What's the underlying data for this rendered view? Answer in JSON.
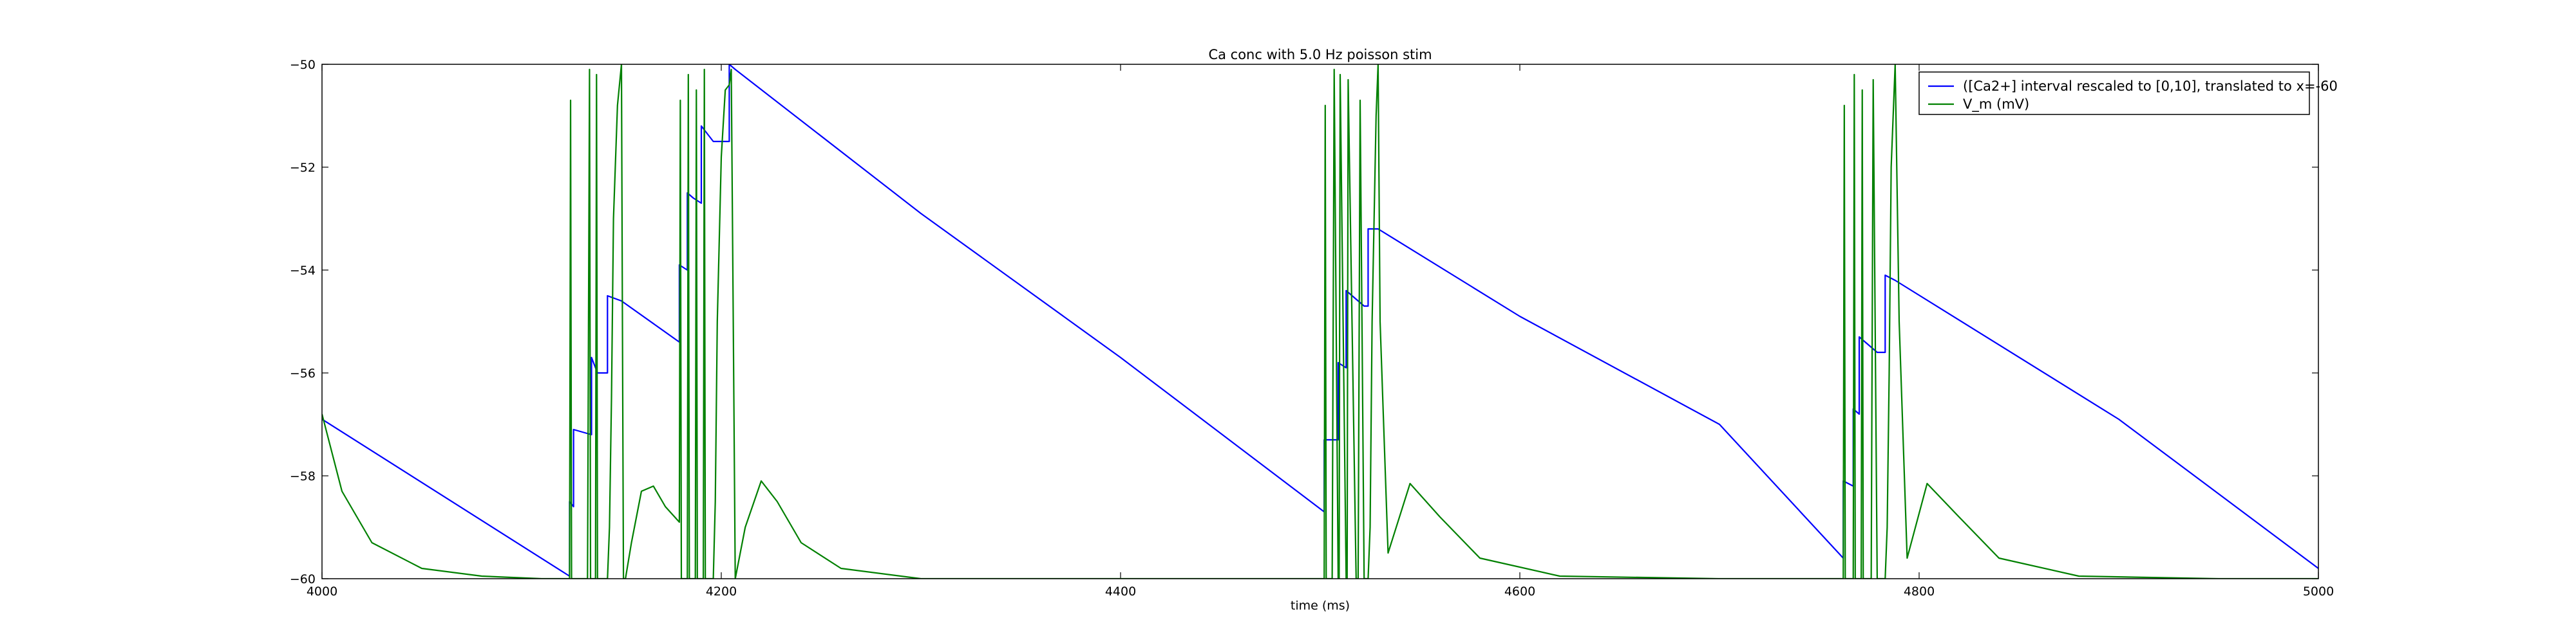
{
  "chart_data": {
    "type": "line",
    "title": "Ca conc with 5.0 Hz poisson stim",
    "xlabel": "time (ms)",
    "ylabel": "",
    "xlim": [
      4000,
      5000
    ],
    "ylim": [
      -60,
      -50
    ],
    "xticks": [
      4000,
      4200,
      4400,
      4600,
      4800,
      5000
    ],
    "yticks": [
      -60,
      -58,
      -56,
      -54,
      -52,
      -50
    ],
    "grid": false,
    "legend_position": "top-right",
    "series": [
      {
        "name": "([Ca2+] interval rescaled to [0,10], translated to x=-60",
        "color": "#0000ff",
        "x": [
          4000,
          4124,
          4124,
          4126,
          4126,
          4135,
          4135,
          4138,
          4138,
          4143,
          4143,
          4150,
          4150,
          4179,
          4179,
          4183,
          4183,
          4186,
          4186,
          4190,
          4190,
          4196,
          4196,
          4204,
          4204,
          4207,
          4207,
          4300,
          4400,
          4502,
          4502,
          4509,
          4509,
          4513,
          4513,
          4522,
          4522,
          4524,
          4524,
          4529,
          4529,
          4600,
          4700,
          4762,
          4762,
          4767,
          4767,
          4770,
          4770,
          4779,
          4779,
          4783,
          4783,
          4788,
          4788,
          4900,
          5000
        ],
        "y": [
          -56.9,
          -59.95,
          -58.5,
          -58.6,
          -57.1,
          -57.2,
          -55.7,
          -56.0,
          -56.0,
          -56.0,
          -54.5,
          -54.6,
          -54.6,
          -55.4,
          -53.9,
          -54.0,
          -52.5,
          -52.6,
          -52.6,
          -52.7,
          -51.2,
          -51.5,
          -51.5,
          -51.5,
          -50.0,
          -50.1,
          -50.1,
          -52.9,
          -55.7,
          -58.7,
          -57.3,
          -57.3,
          -55.8,
          -55.9,
          -54.4,
          -54.7,
          -54.7,
          -54.7,
          -53.2,
          -53.2,
          -53.2,
          -54.9,
          -57.0,
          -59.6,
          -58.1,
          -58.2,
          -56.7,
          -56.8,
          -55.3,
          -55.6,
          -55.6,
          -55.6,
          -54.1,
          -54.2,
          -54.2,
          -56.9,
          -59.8
        ]
      },
      {
        "name": "V_m (mV)",
        "color": "#008000",
        "x": [
          4000,
          4010,
          4025,
          4050,
          4080,
          4110,
          4124,
          4124.5,
          4125,
          4126,
          4126.5,
          4127,
          4133,
          4134,
          4134.5,
          4135,
          4136,
          4137,
          4137.5,
          4138,
          4143,
          4144,
          4145,
          4146,
          4148,
          4150,
          4150.5,
          4151,
          4152,
          4155,
          4160,
          4166,
          4172,
          4179,
          4179.5,
          4180,
          4182,
          4183,
          4183.5,
          4184,
          4186,
          4187,
          4187.5,
          4188,
          4190,
          4191,
          4191.5,
          4192,
          4196,
          4197,
          4198,
          4200,
          4202,
          4204,
          4205,
          4206,
          4207,
          4212,
          4220,
          4228,
          4240,
          4260,
          4300,
          4400,
          4500,
          4502,
          4502.5,
          4503,
          4506,
          4507,
          4509,
          4509.5,
          4510,
          4513,
          4513.5,
          4514,
          4518,
          4519,
          4520,
          4522,
          4524,
          4525,
          4526,
          4528,
          4529,
          4530,
          4534,
          4545,
          4560,
          4580,
          4620,
          4700,
          4762,
          4762.5,
          4763,
          4766,
          4767,
          4767.5,
          4768,
          4770,
          4771,
          4771.5,
          4772,
          4776,
          4777,
          4779,
          4783,
          4784,
          4785,
          4786,
          4788,
          4790,
          4794,
          4804,
          4820,
          4840,
          4880,
          4950,
          5000
        ],
        "y": [
          -56.8,
          -58.3,
          -59.3,
          -59.8,
          -59.95,
          -60.0,
          -60.0,
          -50.7,
          -60.0,
          -60.0,
          -60.0,
          -60.0,
          -60.0,
          -50.1,
          -60.0,
          -60.0,
          -60.0,
          -60.0,
          -50.2,
          -60.0,
          -60.0,
          -59.0,
          -56.5,
          -53.0,
          -50.8,
          -50.0,
          -55.0,
          -60.0,
          -60.0,
          -59.3,
          -58.3,
          -58.2,
          -58.6,
          -58.9,
          -50.7,
          -60.0,
          -60.0,
          -60.0,
          -50.2,
          -60.0,
          -60.0,
          -60.0,
          -50.5,
          -60.0,
          -60.0,
          -60.0,
          -50.1,
          -60.0,
          -60.0,
          -58.5,
          -55.0,
          -51.8,
          -50.5,
          -50.4,
          -50.1,
          -55.0,
          -60.0,
          -59.0,
          -58.1,
          -58.5,
          -59.3,
          -59.8,
          -60.0,
          -60.0,
          -60.0,
          -60.0,
          -50.8,
          -60.0,
          -60.0,
          -50.1,
          -60.0,
          -60.0,
          -50.2,
          -60.0,
          -60.0,
          -50.3,
          -60.0,
          -60.0,
          -50.7,
          -60.0,
          -60.0,
          -59.0,
          -55.0,
          -51.0,
          -50.0,
          -55.0,
          -59.5,
          -58.15,
          -58.8,
          -59.6,
          -59.95,
          -60.0,
          -60.0,
          -50.8,
          -60.0,
          -60.0,
          -60.0,
          -50.2,
          -60.0,
          -60.0,
          -60.0,
          -50.5,
          -60.0,
          -60.0,
          -50.3,
          -60.0,
          -60.0,
          -59.0,
          -56.0,
          -52.0,
          -50.0,
          -55.0,
          -59.6,
          -58.15,
          -58.8,
          -59.6,
          -59.95,
          -60.0,
          -60.0
        ]
      }
    ]
  }
}
